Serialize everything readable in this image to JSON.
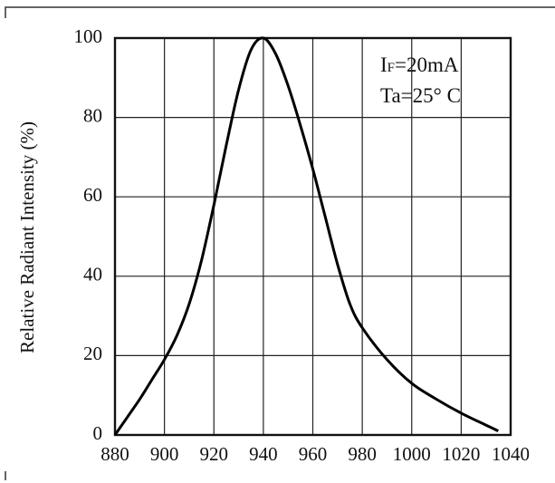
{
  "chart_data": {
    "type": "line",
    "title": "",
    "xlabel": "",
    "ylabel": "Relative Radiant Intensity (%)",
    "xlim": [
      880,
      1040
    ],
    "ylim": [
      0,
      100
    ],
    "xticks": [
      880,
      900,
      920,
      940,
      960,
      980,
      1000,
      1020,
      1040
    ],
    "yticks": [
      0,
      20,
      40,
      60,
      80,
      100
    ],
    "grid": true,
    "annotations": [
      "IF=20mA",
      "Ta=25° C"
    ],
    "series": [
      {
        "x": [
          880,
          885,
          890,
          895,
          900,
          905,
          910,
          915,
          920,
          925,
          930,
          935,
          940,
          945,
          950,
          955,
          960,
          965,
          970,
          975,
          980,
          990,
          1000,
          1010,
          1020,
          1030,
          1035
        ],
        "y": [
          0,
          4.5,
          9,
          14,
          19,
          25,
          33,
          44,
          58,
          73,
          87,
          97,
          100,
          96,
          88,
          78,
          67,
          55,
          43,
          33,
          27,
          19,
          13,
          9,
          5.5,
          2.5,
          1
        ]
      }
    ]
  }
}
